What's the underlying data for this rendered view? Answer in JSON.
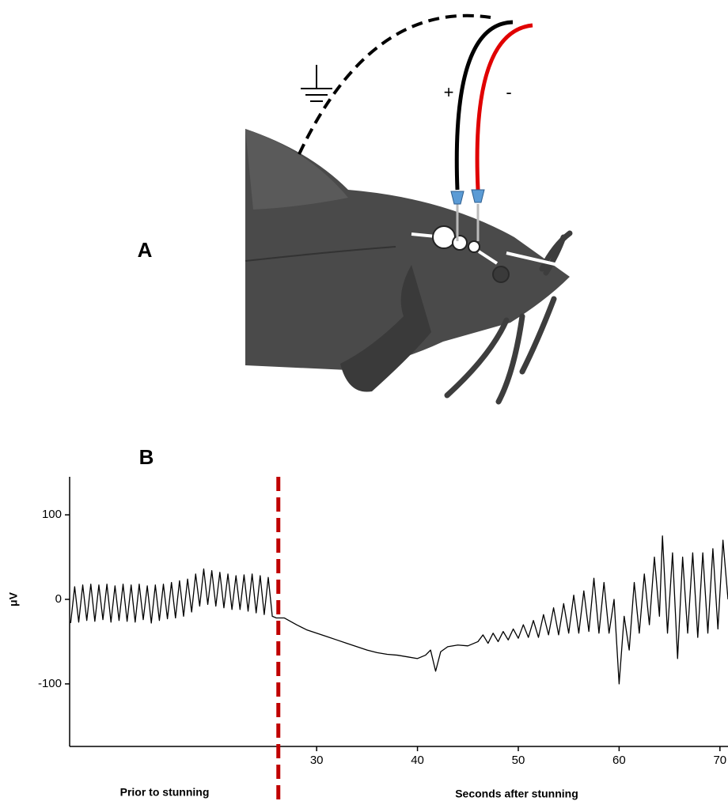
{
  "illustration": {
    "label": "A",
    "plus": "+",
    "minus": "-"
  },
  "chart_data": {
    "type": "line",
    "panel_label": "B",
    "ylabel": "μV",
    "xlabel_left": "Prior to stunning",
    "xlabel_right": "Seconds after stunning",
    "xlim": [
      5.5,
      70.8
    ],
    "xticks": [
      30,
      40,
      50,
      60,
      70
    ],
    "ylim": [
      -174,
      145
    ],
    "yticks": [
      100,
      0,
      -100
    ],
    "color": "#000000",
    "grid": false,
    "stun_line": {
      "x": 26.2,
      "color": "#c00000"
    },
    "x": [
      5.6,
      6.0,
      6.4,
      6.8,
      7.2,
      7.6,
      8.0,
      8.4,
      8.8,
      9.2,
      9.6,
      10.0,
      10.4,
      10.8,
      11.2,
      11.6,
      12.0,
      12.4,
      12.8,
      13.2,
      13.6,
      14.0,
      14.4,
      14.8,
      15.2,
      15.6,
      16.0,
      16.4,
      16.8,
      17.2,
      17.6,
      18.0,
      18.4,
      18.8,
      19.2,
      19.6,
      20.0,
      20.4,
      20.8,
      21.2,
      21.6,
      22.0,
      22.4,
      22.8,
      23.2,
      23.6,
      24.0,
      24.4,
      24.8,
      25.2,
      25.6,
      26.0,
      26.8,
      28,
      29,
      30,
      31,
      32,
      33,
      34,
      35,
      36,
      37,
      38,
      39,
      40,
      40.8,
      41.3,
      41.8,
      42.3,
      43,
      44,
      45,
      46,
      46.5,
      47,
      47.5,
      48,
      48.5,
      49,
      49.5,
      50,
      50.5,
      51,
      51.5,
      52,
      52.5,
      53,
      53.5,
      54,
      54.5,
      55,
      55.5,
      56,
      56.5,
      57,
      57.5,
      58,
      58.5,
      59,
      59.5,
      60,
      60.5,
      61,
      61.5,
      62,
      62.5,
      63,
      63.5,
      64,
      64.3,
      64.8,
      65.3,
      65.8,
      66.3,
      66.8,
      67.3,
      67.8,
      68.3,
      68.8,
      69.3,
      69.8,
      70.3,
      70.8
    ],
    "values": [
      -28,
      15,
      -27,
      17,
      -25,
      18,
      -26,
      17,
      -24,
      18,
      -27,
      16,
      -25,
      18,
      -26,
      17,
      -27,
      18,
      -24,
      16,
      -28,
      17,
      -25,
      18,
      -23,
      20,
      -22,
      22,
      -20,
      24,
      -15,
      30,
      -8,
      36,
      -6,
      34,
      -8,
      32,
      -10,
      30,
      -12,
      28,
      -12,
      29,
      -14,
      30,
      -16,
      28,
      -18,
      26,
      -20,
      -22,
      -22,
      -30,
      -36,
      -40,
      -44,
      -48,
      -52,
      -56,
      -60,
      -63,
      -65,
      -66,
      -68,
      -70,
      -66,
      -60,
      -85,
      -62,
      -56,
      -54,
      -55,
      -50,
      -42,
      -52,
      -40,
      -50,
      -38,
      -48,
      -35,
      -46,
      -30,
      -45,
      -25,
      -45,
      -18,
      -42,
      -10,
      -42,
      -5,
      -40,
      5,
      -40,
      10,
      -38,
      25,
      -40,
      20,
      -40,
      0,
      -100,
      -20,
      -60,
      20,
      -40,
      30,
      -30,
      50,
      -20,
      75,
      -40,
      55,
      -70,
      50,
      -40,
      55,
      -45,
      55,
      -40,
      60,
      -35,
      70,
      0
    ]
  }
}
